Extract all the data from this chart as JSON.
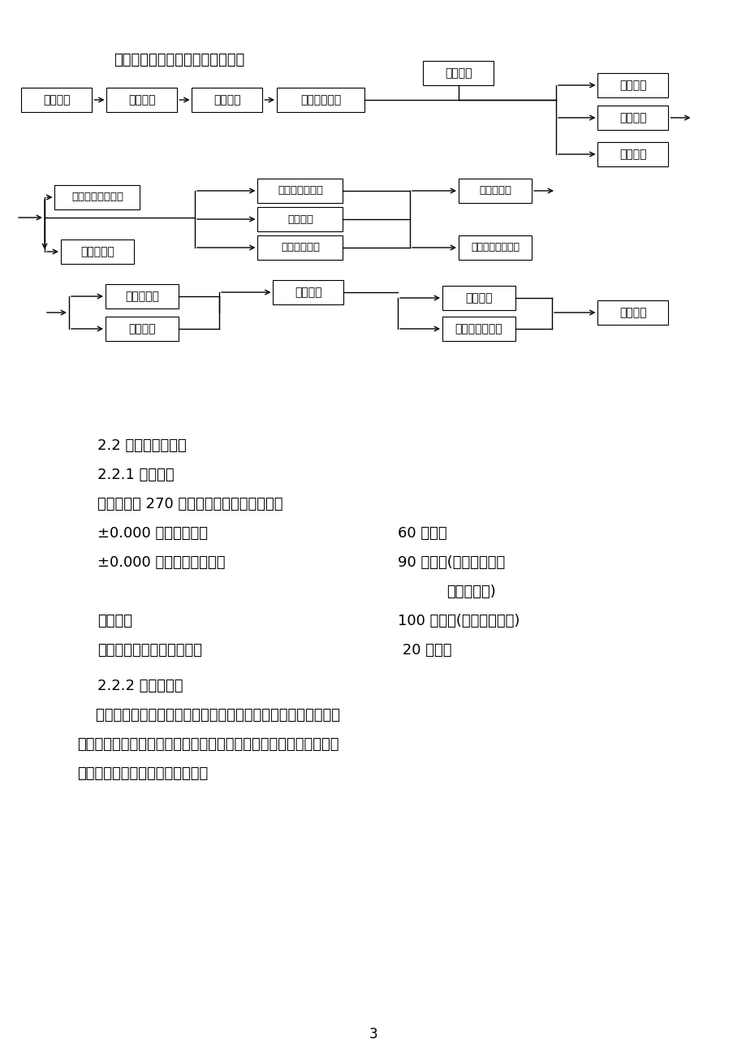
{
  "title_text": "本工程土建部分施工总程序如下：",
  "background_color": "#ffffff",
  "text_color": "#000000",
  "box_color": "#ffffff",
  "box_edge_color": "#000000",
  "section1_heading": "2.2 主要施工指标：",
  "section2_heading": "2.2.1 工期指标",
  "section3_text": "总工期拟定 270 日历天，各分段工期如下：",
  "items": [
    {
      "label": "±0.000 以下基础工程",
      "value": "60 日历天",
      "indent": false
    },
    {
      "label": "±0.000 以上主体结构施工",
      "value": "90 日历天(包括围护结构",
      "extra": "及结构验收)",
      "indent": false
    },
    {
      "label": "装饰工程",
      "value": "100 日历天(包括屋面防水)",
      "indent": true
    },
    {
      "label": "室外工程、设备调试、验收",
      "value": " 20 日历天",
      "indent": false
    }
  ],
  "section4_heading": "2.2.2 质量指标：",
  "para1": "    按甲方要求本工程质量等级为合格，我司总结已建工程经验基础",
  "para2": "上，以本工程为楔机，提高管理，施工水平，在确保合格的基础上，",
  "para3": "力争优良。各分部质量目标如下：",
  "page_number": "3",
  "flowchart": {
    "row1_boxes": [
      "场地清理",
      "测量放样",
      "基础工程",
      "主体结构施工"
    ],
    "row1_top_box": "水电预埋",
    "row1_right_boxes": [
      "屋面施工",
      "外墙抹灰",
      "内墙抹灰"
    ],
    "row2_left_boxes": [
      "铝合金门窗框安装",
      "木门框安装"
    ],
    "row2_mid_boxes": [
      "水泥砂浆楼地面",
      "外墙面砖",
      "水磨石楼地面"
    ],
    "row2_right_boxes": [
      "木门扇安装",
      "铝合金门窗扇安装"
    ],
    "row3_left_boxes": [
      "外墙铝塑板",
      "内墙涂料"
    ],
    "row3_mid_box": "设备安装",
    "row3_right_boxes": [
      "木门油漆",
      "室外明沟、散水"
    ],
    "row3_end_box": "竣工交付"
  }
}
